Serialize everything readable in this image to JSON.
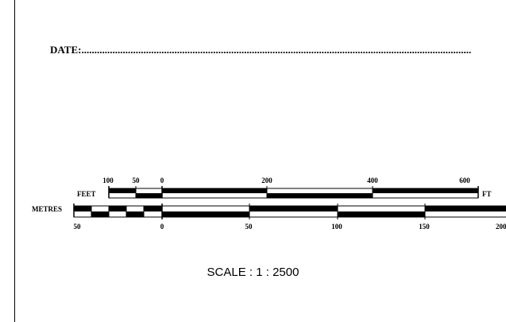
{
  "document": {
    "date_label": "DATE:",
    "date_fill": "......................................................................................................................................................."
  },
  "scale_bar": {
    "feet": {
      "label": "FEET",
      "unit_label": "FT",
      "tick_labels": [
        "100",
        "50",
        "0",
        "200",
        "400",
        "600"
      ]
    },
    "metres": {
      "label": "METRES",
      "tick_labels": [
        "50",
        "0",
        "50",
        "100",
        "150",
        "200"
      ]
    },
    "caption": "SCALE : 1 : 2500",
    "colors": {
      "ink": "#000000",
      "paper": "#ffffff"
    }
  }
}
